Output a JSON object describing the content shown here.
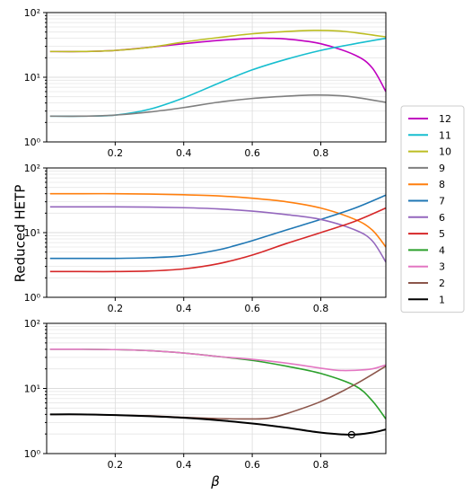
{
  "figure": {
    "ylabel": "Reduced HETP",
    "xlabel": "β"
  },
  "legend": {
    "placement": "right",
    "entries": [
      {
        "label": "12",
        "color": "#c000c0"
      },
      {
        "label": "11",
        "color": "#17becf"
      },
      {
        "label": "10",
        "color": "#bcbd22"
      },
      {
        "label": "9",
        "color": "#7f7f7f"
      },
      {
        "label": "8",
        "color": "#ff7f0e"
      },
      {
        "label": "7",
        "color": "#1f77b4"
      },
      {
        "label": "6",
        "color": "#9467bd"
      },
      {
        "label": "5",
        "color": "#d62728"
      },
      {
        "label": "4",
        "color": "#2ca02c"
      },
      {
        "label": "3",
        "color": "#e377c2"
      },
      {
        "label": "2",
        "color": "#8c564b"
      },
      {
        "label": "1",
        "color": "#000000"
      }
    ]
  },
  "chart_data": [
    {
      "type": "line",
      "xlim": [
        0.0,
        0.99
      ],
      "ylim": [
        1,
        100
      ],
      "yscale": "log",
      "grid": true,
      "xticks": [
        0.2,
        0.4,
        0.6,
        0.8
      ],
      "xtick_labels": [
        "0.2",
        "0.4",
        "0.6",
        "0.8"
      ],
      "yticks": [
        1,
        10,
        100
      ],
      "ytick_labels": [
        "10⁰",
        "10¹",
        "10²"
      ],
      "series": [
        {
          "name": "12",
          "color": "#c000c0",
          "x": [
            0.01,
            0.1,
            0.2,
            0.3,
            0.4,
            0.5,
            0.6,
            0.65,
            0.7,
            0.8,
            0.9,
            0.95,
            0.99
          ],
          "y": [
            25,
            25,
            26,
            29,
            33,
            37,
            40,
            40,
            39,
            33,
            22,
            14,
            6
          ]
        },
        {
          "name": "11",
          "color": "#17becf",
          "x": [
            0.01,
            0.1,
            0.2,
            0.3,
            0.4,
            0.5,
            0.6,
            0.7,
            0.8,
            0.9,
            0.99
          ],
          "y": [
            2.5,
            2.5,
            2.6,
            3.2,
            4.8,
            8.0,
            13,
            19,
            26,
            33,
            40
          ]
        },
        {
          "name": "10",
          "color": "#bcbd22",
          "x": [
            0.01,
            0.1,
            0.2,
            0.3,
            0.4,
            0.5,
            0.6,
            0.7,
            0.78,
            0.85,
            0.9,
            0.99
          ],
          "y": [
            25,
            25,
            26,
            29,
            35,
            41,
            47,
            51,
            53,
            52,
            49,
            42
          ]
        },
        {
          "name": "9",
          "color": "#7f7f7f",
          "x": [
            0.01,
            0.1,
            0.2,
            0.3,
            0.4,
            0.5,
            0.6,
            0.7,
            0.78,
            0.85,
            0.9,
            0.99
          ],
          "y": [
            2.5,
            2.5,
            2.6,
            2.9,
            3.4,
            4.1,
            4.7,
            5.1,
            5.3,
            5.2,
            4.9,
            4.1
          ]
        }
      ]
    },
    {
      "type": "line",
      "xlim": [
        0.0,
        0.99
      ],
      "ylim": [
        1,
        100
      ],
      "yscale": "log",
      "grid": true,
      "xticks": [
        0.2,
        0.4,
        0.6,
        0.8
      ],
      "xtick_labels": [
        "0.2",
        "0.4",
        "0.6",
        "0.8"
      ],
      "yticks": [
        1,
        10,
        100
      ],
      "ytick_labels": [
        "10⁰",
        "10¹",
        "10²"
      ],
      "series": [
        {
          "name": "8",
          "color": "#ff7f0e",
          "x": [
            0.01,
            0.1,
            0.2,
            0.3,
            0.4,
            0.5,
            0.6,
            0.7,
            0.8,
            0.9,
            0.95,
            0.99
          ],
          "y": [
            40,
            40,
            40,
            39.5,
            38.5,
            37,
            34,
            30,
            24,
            16,
            11,
            6
          ]
        },
        {
          "name": "7",
          "color": "#1f77b4",
          "x": [
            0.01,
            0.1,
            0.2,
            0.3,
            0.4,
            0.5,
            0.55,
            0.6,
            0.7,
            0.8,
            0.9,
            0.99
          ],
          "y": [
            4,
            4,
            4,
            4.1,
            4.4,
            5.4,
            6.3,
            7.5,
            11,
            16,
            24,
            38
          ]
        },
        {
          "name": "6",
          "color": "#9467bd",
          "x": [
            0.01,
            0.1,
            0.2,
            0.3,
            0.4,
            0.5,
            0.6,
            0.7,
            0.8,
            0.9,
            0.95,
            0.99
          ],
          "y": [
            25,
            25,
            25,
            24.8,
            24.3,
            23.3,
            21.5,
            19,
            16,
            11,
            7.5,
            3.5
          ]
        },
        {
          "name": "5",
          "color": "#d62728",
          "x": [
            0.01,
            0.1,
            0.2,
            0.3,
            0.4,
            0.5,
            0.6,
            0.7,
            0.8,
            0.9,
            0.99
          ],
          "y": [
            2.5,
            2.5,
            2.5,
            2.55,
            2.75,
            3.3,
            4.5,
            6.8,
            10,
            15,
            24
          ]
        }
      ]
    },
    {
      "type": "line",
      "xlim": [
        0.0,
        0.99
      ],
      "ylim": [
        1,
        100
      ],
      "yscale": "log",
      "grid": true,
      "xticks": [
        0.2,
        0.4,
        0.6,
        0.8
      ],
      "xtick_labels": [
        "0.2",
        "0.4",
        "0.6",
        "0.8"
      ],
      "yticks": [
        1,
        10,
        100
      ],
      "ytick_labels": [
        "10⁰",
        "10¹",
        "10²"
      ],
      "series": [
        {
          "name": "4",
          "color": "#2ca02c",
          "x": [
            0.01,
            0.1,
            0.2,
            0.3,
            0.4,
            0.5,
            0.6,
            0.7,
            0.8,
            0.9,
            0.95,
            0.99
          ],
          "y": [
            40,
            40,
            39.5,
            38,
            35,
            31,
            27,
            22,
            17,
            11,
            6.5,
            3.4
          ]
        },
        {
          "name": "3",
          "color": "#e377c2",
          "x": [
            0.01,
            0.1,
            0.2,
            0.3,
            0.4,
            0.5,
            0.6,
            0.7,
            0.8,
            0.85,
            0.9,
            0.95,
            0.99
          ],
          "y": [
            40,
            40,
            39.5,
            38,
            35,
            31,
            28,
            24.5,
            20.5,
            19,
            19,
            20,
            23
          ]
        },
        {
          "name": "2",
          "color": "#8c564b",
          "x": [
            0.01,
            0.1,
            0.2,
            0.3,
            0.4,
            0.5,
            0.6,
            0.65,
            0.7,
            0.8,
            0.9,
            0.99
          ],
          "y": [
            4,
            4,
            3.9,
            3.8,
            3.6,
            3.45,
            3.4,
            3.5,
            4.1,
            6.3,
            11.5,
            22
          ]
        },
        {
          "name": "1",
          "color": "#000000",
          "x": [
            0.01,
            0.1,
            0.2,
            0.3,
            0.4,
            0.5,
            0.6,
            0.7,
            0.8,
            0.89,
            0.95,
            0.99
          ],
          "y": [
            4,
            4,
            3.9,
            3.75,
            3.55,
            3.25,
            2.9,
            2.5,
            2.1,
            1.95,
            2.1,
            2.35
          ]
        }
      ],
      "markers": [
        {
          "series": "1",
          "x": 0.89,
          "y": 1.95,
          "shape": "open-circle"
        }
      ]
    }
  ]
}
